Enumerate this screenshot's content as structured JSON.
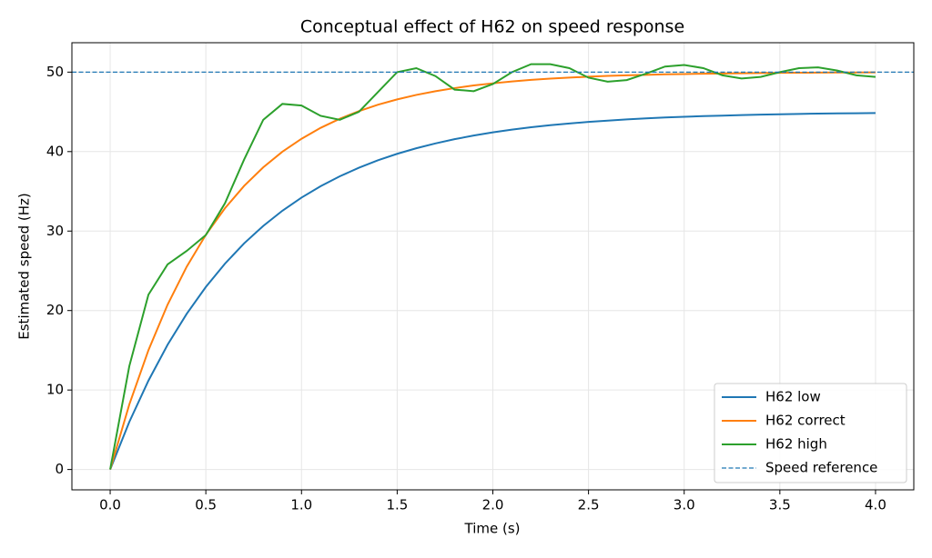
{
  "chart_data": {
    "type": "line",
    "title": "Conceptual effect of H62 on speed response",
    "x_label": "Time (s)",
    "y_label": "Estimated speed (Hz)",
    "x": [
      0.0,
      0.1,
      0.2,
      0.3,
      0.4,
      0.5,
      0.6,
      0.7,
      0.8,
      0.9,
      1.0,
      1.1,
      1.2,
      1.3,
      1.4,
      1.5,
      1.6,
      1.7,
      1.8,
      1.9,
      2.0,
      2.1,
      2.2,
      2.3,
      2.4,
      2.5,
      2.6,
      2.7,
      2.8,
      2.9,
      3.0,
      3.1,
      3.2,
      3.3,
      3.4,
      3.5,
      3.6,
      3.7,
      3.8,
      3.9,
      4.0
    ],
    "series": [
      {
        "name": "H62 low",
        "color": "#1f77b4",
        "values": [
          0,
          5.99,
          11.18,
          15.69,
          19.59,
          22.97,
          25.9,
          28.45,
          30.65,
          32.56,
          34.21,
          35.65,
          36.89,
          37.97,
          38.91,
          39.72,
          40.42,
          41.03,
          41.56,
          42.02,
          42.42,
          42.76,
          43.06,
          43.32,
          43.54,
          43.74,
          43.9,
          44.05,
          44.18,
          44.29,
          44.38,
          44.46,
          44.53,
          44.6,
          44.65,
          44.7,
          44.74,
          44.78,
          44.81,
          44.83,
          44.85
        ]
      },
      {
        "name": "H62 correct",
        "color": "#ff7f0e",
        "values": [
          0,
          8.18,
          15.01,
          20.74,
          25.52,
          29.53,
          32.87,
          35.68,
          38.02,
          39.98,
          41.61,
          42.99,
          44.13,
          45.09,
          45.9,
          46.57,
          47.13,
          47.6,
          47.99,
          48.32,
          48.59,
          48.82,
          49.02,
          49.18,
          49.31,
          49.42,
          49.52,
          49.6,
          49.66,
          49.72,
          49.76,
          49.8,
          49.83,
          49.86,
          49.89,
          49.91,
          49.92,
          49.94,
          49.95,
          49.96,
          49.97
        ]
      },
      {
        "name": "H62 high",
        "color": "#2ca02c",
        "values": [
          0,
          13,
          22,
          25.8,
          27.5,
          29.5,
          33.5,
          39,
          44,
          46,
          45.8,
          44.5,
          44,
          45,
          47.5,
          50,
          50.5,
          49.5,
          47.8,
          47.6,
          48.5,
          50,
          51,
          51,
          50.5,
          49.3,
          48.8,
          49,
          49.8,
          50.7,
          50.9,
          50.5,
          49.6,
          49.2,
          49.4,
          50,
          50.5,
          50.6,
          50.2,
          49.6,
          49.4
        ]
      }
    ],
    "reference": {
      "name": "Speed reference",
      "value": 50,
      "color": "#1f77b4",
      "dashed": true
    },
    "xlim": [
      -0.2,
      4.2
    ],
    "ylim": [
      -2.56,
      53.7
    ],
    "xticks": [
      {
        "value": 0,
        "label": "0.0"
      },
      0.5,
      {
        "value": 1,
        "label": "1.0"
      },
      1.5,
      {
        "value": 2,
        "label": "2.0"
      },
      2.5,
      {
        "value": 3,
        "label": "3.0"
      },
      3.5,
      {
        "value": 4,
        "label": "4.0"
      }
    ],
    "yticks": [
      0,
      10,
      20,
      30,
      40,
      50
    ],
    "grid": true,
    "legend": "lower right"
  }
}
